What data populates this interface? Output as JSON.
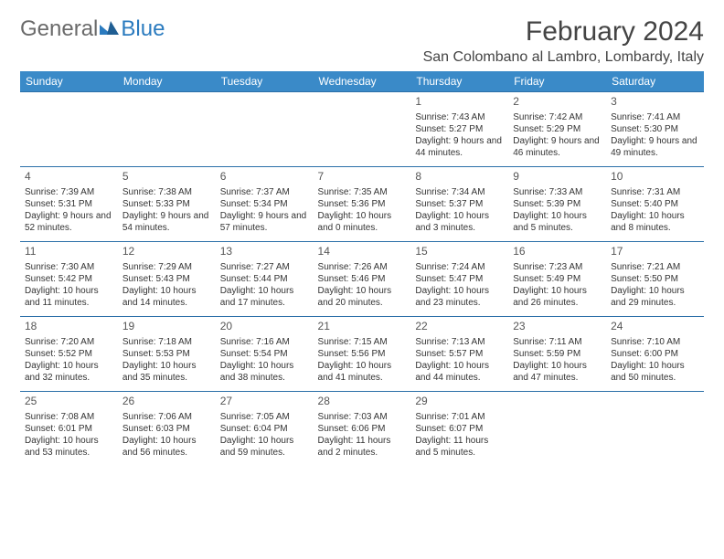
{
  "brand": {
    "part1": "General",
    "part2": "Blue"
  },
  "title": "February 2024",
  "location": "San Colombano al Lambro, Lombardy, Italy",
  "colors": {
    "header_bg": "#3a8ac8",
    "header_text": "#ffffff",
    "row_border": "#2b6fa8",
    "brand_gray": "#6a6a6a",
    "brand_blue": "#2b7bbf",
    "text": "#333333",
    "background": "#ffffff"
  },
  "fonts": {
    "title_size": 30,
    "location_size": 16,
    "weekday_size": 12,
    "daynum_size": 12,
    "cell_size": 10
  },
  "weekdays": [
    "Sunday",
    "Monday",
    "Tuesday",
    "Wednesday",
    "Thursday",
    "Friday",
    "Saturday"
  ],
  "weeks": [
    [
      null,
      null,
      null,
      null,
      {
        "n": "1",
        "sr": "7:43 AM",
        "ss": "5:27 PM",
        "dl": "9 hours and 44 minutes."
      },
      {
        "n": "2",
        "sr": "7:42 AM",
        "ss": "5:29 PM",
        "dl": "9 hours and 46 minutes."
      },
      {
        "n": "3",
        "sr": "7:41 AM",
        "ss": "5:30 PM",
        "dl": "9 hours and 49 minutes."
      }
    ],
    [
      {
        "n": "4",
        "sr": "7:39 AM",
        "ss": "5:31 PM",
        "dl": "9 hours and 52 minutes."
      },
      {
        "n": "5",
        "sr": "7:38 AM",
        "ss": "5:33 PM",
        "dl": "9 hours and 54 minutes."
      },
      {
        "n": "6",
        "sr": "7:37 AM",
        "ss": "5:34 PM",
        "dl": "9 hours and 57 minutes."
      },
      {
        "n": "7",
        "sr": "7:35 AM",
        "ss": "5:36 PM",
        "dl": "10 hours and 0 minutes."
      },
      {
        "n": "8",
        "sr": "7:34 AM",
        "ss": "5:37 PM",
        "dl": "10 hours and 3 minutes."
      },
      {
        "n": "9",
        "sr": "7:33 AM",
        "ss": "5:39 PM",
        "dl": "10 hours and 5 minutes."
      },
      {
        "n": "10",
        "sr": "7:31 AM",
        "ss": "5:40 PM",
        "dl": "10 hours and 8 minutes."
      }
    ],
    [
      {
        "n": "11",
        "sr": "7:30 AM",
        "ss": "5:42 PM",
        "dl": "10 hours and 11 minutes."
      },
      {
        "n": "12",
        "sr": "7:29 AM",
        "ss": "5:43 PM",
        "dl": "10 hours and 14 minutes."
      },
      {
        "n": "13",
        "sr": "7:27 AM",
        "ss": "5:44 PM",
        "dl": "10 hours and 17 minutes."
      },
      {
        "n": "14",
        "sr": "7:26 AM",
        "ss": "5:46 PM",
        "dl": "10 hours and 20 minutes."
      },
      {
        "n": "15",
        "sr": "7:24 AM",
        "ss": "5:47 PM",
        "dl": "10 hours and 23 minutes."
      },
      {
        "n": "16",
        "sr": "7:23 AM",
        "ss": "5:49 PM",
        "dl": "10 hours and 26 minutes."
      },
      {
        "n": "17",
        "sr": "7:21 AM",
        "ss": "5:50 PM",
        "dl": "10 hours and 29 minutes."
      }
    ],
    [
      {
        "n": "18",
        "sr": "7:20 AM",
        "ss": "5:52 PM",
        "dl": "10 hours and 32 minutes."
      },
      {
        "n": "19",
        "sr": "7:18 AM",
        "ss": "5:53 PM",
        "dl": "10 hours and 35 minutes."
      },
      {
        "n": "20",
        "sr": "7:16 AM",
        "ss": "5:54 PM",
        "dl": "10 hours and 38 minutes."
      },
      {
        "n": "21",
        "sr": "7:15 AM",
        "ss": "5:56 PM",
        "dl": "10 hours and 41 minutes."
      },
      {
        "n": "22",
        "sr": "7:13 AM",
        "ss": "5:57 PM",
        "dl": "10 hours and 44 minutes."
      },
      {
        "n": "23",
        "sr": "7:11 AM",
        "ss": "5:59 PM",
        "dl": "10 hours and 47 minutes."
      },
      {
        "n": "24",
        "sr": "7:10 AM",
        "ss": "6:00 PM",
        "dl": "10 hours and 50 minutes."
      }
    ],
    [
      {
        "n": "25",
        "sr": "7:08 AM",
        "ss": "6:01 PM",
        "dl": "10 hours and 53 minutes."
      },
      {
        "n": "26",
        "sr": "7:06 AM",
        "ss": "6:03 PM",
        "dl": "10 hours and 56 minutes."
      },
      {
        "n": "27",
        "sr": "7:05 AM",
        "ss": "6:04 PM",
        "dl": "10 hours and 59 minutes."
      },
      {
        "n": "28",
        "sr": "7:03 AM",
        "ss": "6:06 PM",
        "dl": "11 hours and 2 minutes."
      },
      {
        "n": "29",
        "sr": "7:01 AM",
        "ss": "6:07 PM",
        "dl": "11 hours and 5 minutes."
      },
      null,
      null
    ]
  ],
  "labels": {
    "sunrise": "Sunrise:",
    "sunset": "Sunset:",
    "daylight": "Daylight:"
  }
}
